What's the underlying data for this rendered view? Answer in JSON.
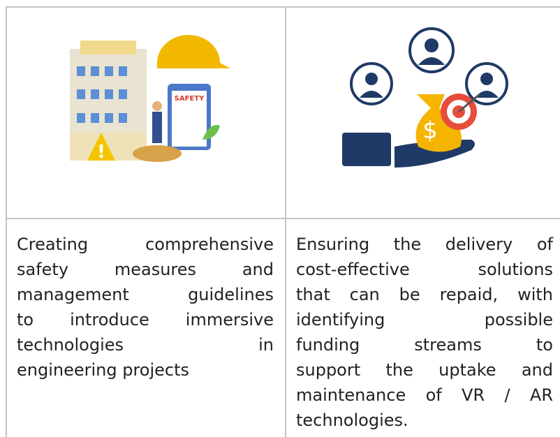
{
  "table": {
    "rows": [
      [
        {
          "illustration": "SAFETY"
        },
        {
          "illustration": "$"
        }
      ],
      [
        {
          "lines": [
            "Creating comprehensive",
            "safety measures and",
            "management guidelines",
            "to introduce immersive",
            "technologies in",
            "engineering projects"
          ]
        },
        {
          "lines": [
            "Ensuring the delivery of",
            "cost-effective solutions",
            "that can be repaid, with",
            "identifying possible",
            "funding streams to",
            "support the uptake and",
            "maintenance of VR / AR",
            "technologies."
          ]
        }
      ]
    ]
  }
}
